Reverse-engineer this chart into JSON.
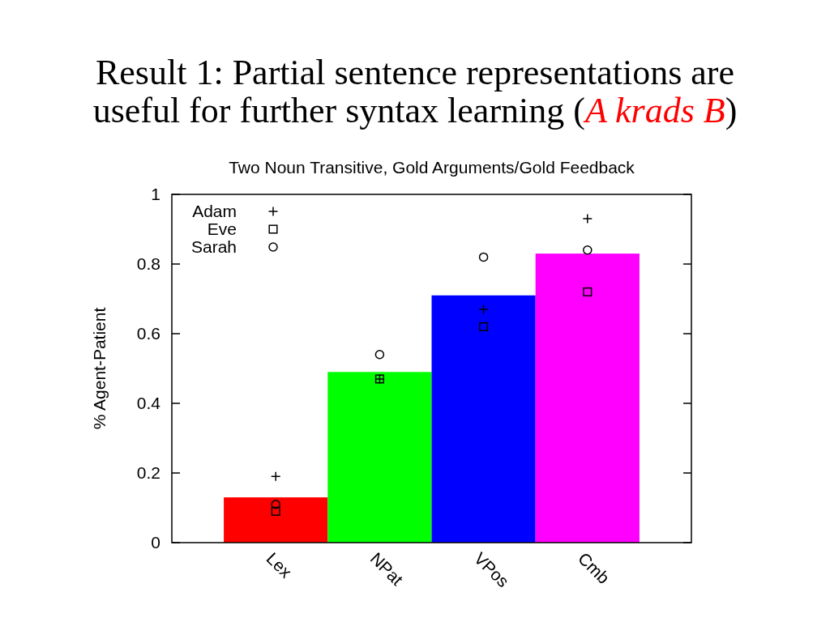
{
  "chart_data": {
    "type": "bar",
    "title": "Result 1: Partial sentence representations are useful for further syntax learning (A krads B)",
    "subtitle": "Two Noun Transitive, Gold Arguments/Gold Feedback",
    "ylabel": "% Agent-Patient",
    "categories": [
      "Lex",
      "NPat",
      "VPos",
      "Cmb"
    ],
    "series": [
      {
        "type": "bar",
        "colors": [
          "#ff0000",
          "#00ff00",
          "#0000ff",
          "#ff00ff"
        ],
        "values": [
          0.13,
          0.49,
          0.71,
          0.83
        ]
      },
      {
        "type": "scatter",
        "name": "Adam",
        "color": "#000000",
        "marker": "cross",
        "x": [
          "Lex",
          "NPat",
          "VPos",
          "Cmb"
        ],
        "values": [
          0.19,
          0.47,
          0.67,
          0.93
        ]
      },
      {
        "type": "scatter",
        "name": "Eve",
        "color": "#000000",
        "marker": "square",
        "x": [
          "Lex",
          "NPat",
          "VPos",
          "Cmb"
        ],
        "values": [
          0.09,
          0.47,
          0.62,
          0.72
        ]
      },
      {
        "type": "scatter",
        "name": "Sarah",
        "color": "#000000",
        "marker": "circle",
        "x": [
          "Lex",
          "NPat",
          "VPos",
          "Cmb"
        ],
        "values": [
          0.11,
          0.54,
          0.82,
          0.84
        ]
      }
    ],
    "ylim": [
      0,
      1
    ],
    "yticks": [
      0,
      0.2,
      0.4,
      0.6,
      0.8,
      1
    ],
    "legend": "top left"
  }
}
